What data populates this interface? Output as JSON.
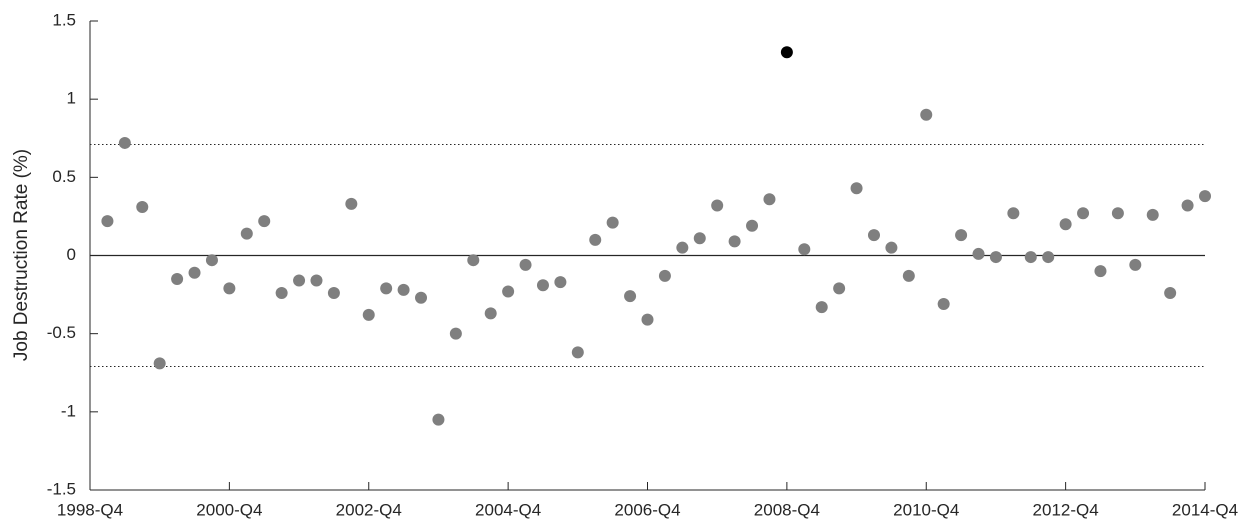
{
  "chart_data": {
    "type": "scatter",
    "y_label": "Job Destruction Rate (%)",
    "categories": [
      "1998-Q4",
      null,
      null,
      null,
      null,
      null,
      null,
      null,
      "2000-Q4",
      null,
      null,
      null,
      null,
      null,
      null,
      null,
      "2002-Q4",
      null,
      null,
      null,
      null,
      null,
      null,
      null,
      "2004-Q4",
      null,
      null,
      null,
      null,
      null,
      null,
      null,
      "2006-Q4",
      null,
      null,
      null,
      null,
      null,
      null,
      null,
      "2008-Q4",
      null,
      null,
      null,
      null,
      null,
      null,
      null,
      "2010-Q4",
      null,
      null,
      null,
      null,
      null,
      null,
      null,
      "2012-Q4",
      null,
      null,
      null,
      null,
      null,
      null,
      null,
      "2014-Q4"
    ],
    "series": [
      {
        "color": "#7f7f7f",
        "values": [
          null,
          0.22,
          0.72,
          0.31,
          -0.69,
          -0.15,
          -0.11,
          -0.03,
          -0.21,
          0.14,
          0.22,
          -0.24,
          -0.16,
          -0.16,
          -0.24,
          0.33,
          -0.38,
          -0.21,
          -0.22,
          -0.27,
          -1.05,
          -0.5,
          -0.03,
          -0.37,
          -0.23,
          -0.06,
          -0.19,
          -0.17,
          -0.62,
          0.1,
          0.21,
          -0.26,
          -0.41,
          -0.13,
          0.05,
          0.11,
          0.32,
          0.09,
          0.19,
          0.36,
          null,
          0.04,
          -0.33,
          -0.21,
          0.43,
          0.13,
          0.05,
          -0.13,
          0.9,
          -0.31,
          0.13,
          0.01,
          -0.01,
          0.27,
          -0.01,
          -0.01,
          0.2,
          0.27,
          -0.1,
          0.27,
          -0.06,
          0.26,
          -0.24,
          0.32,
          0.38
        ]
      },
      {
        "color": "#000000",
        "values": [
          null,
          null,
          null,
          null,
          null,
          null,
          null,
          null,
          null,
          null,
          null,
          null,
          null,
          null,
          null,
          null,
          null,
          null,
          null,
          null,
          null,
          null,
          null,
          null,
          null,
          null,
          null,
          null,
          null,
          null,
          null,
          null,
          null,
          null,
          null,
          null,
          null,
          null,
          null,
          null,
          1.3,
          null,
          null,
          null,
          null,
          null,
          null,
          null,
          null,
          null,
          null,
          null,
          null,
          null,
          null,
          null,
          null,
          null,
          null,
          null,
          null,
          null,
          null,
          null,
          null
        ]
      }
    ],
    "ylim": [
      -1.5,
      1.5
    ],
    "yticks": [
      -1.5,
      -1,
      -0.5,
      0,
      0.5,
      1,
      1.5
    ],
    "reference_lines": [
      {
        "value": 0,
        "style": "solid"
      },
      {
        "value": 0.71,
        "style": "dotted"
      },
      {
        "value": -0.71,
        "style": "dotted"
      }
    ]
  }
}
